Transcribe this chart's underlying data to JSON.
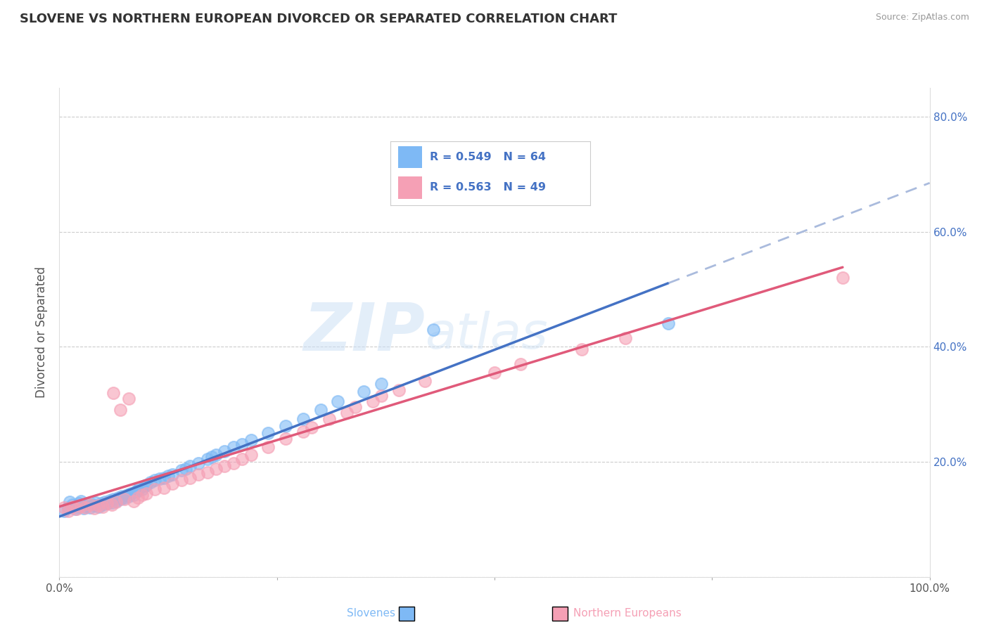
{
  "title": "SLOVENE VS NORTHERN EUROPEAN DIVORCED OR SEPARATED CORRELATION CHART",
  "source": "Source: ZipAtlas.com",
  "ylabel": "Divorced or Separated",
  "legend_labels": [
    "Slovenes",
    "Northern Europeans"
  ],
  "slovene_color": "#7eb9f5",
  "northern_color": "#f5a0b5",
  "slovene_line_color": "#4472c4",
  "northern_line_color": "#e05a7a",
  "slovene_R": 0.549,
  "slovene_N": 64,
  "northern_R": 0.563,
  "northern_N": 49,
  "xlim": [
    0.0,
    1.0
  ],
  "ylim": [
    0.0,
    0.85
  ],
  "watermark_zip": "ZIP",
  "watermark_atlas": "atlas",
  "slovene_x": [
    0.005,
    0.01,
    0.012,
    0.015,
    0.018,
    0.02,
    0.022,
    0.025,
    0.028,
    0.03,
    0.032,
    0.035,
    0.038,
    0.04,
    0.042,
    0.045,
    0.048,
    0.05,
    0.052,
    0.055,
    0.058,
    0.06,
    0.062,
    0.065,
    0.068,
    0.07,
    0.072,
    0.075,
    0.078,
    0.08,
    0.082,
    0.085,
    0.088,
    0.09,
    0.092,
    0.095,
    0.098,
    0.1,
    0.105,
    0.11,
    0.115,
    0.12,
    0.125,
    0.13,
    0.14,
    0.145,
    0.15,
    0.16,
    0.17,
    0.175,
    0.18,
    0.19,
    0.2,
    0.21,
    0.22,
    0.24,
    0.26,
    0.28,
    0.3,
    0.32,
    0.35,
    0.37,
    0.43,
    0.7
  ],
  "slovene_y": [
    0.115,
    0.12,
    0.13,
    0.125,
    0.118,
    0.122,
    0.128,
    0.132,
    0.119,
    0.123,
    0.127,
    0.121,
    0.126,
    0.124,
    0.129,
    0.122,
    0.128,
    0.125,
    0.13,
    0.128,
    0.133,
    0.129,
    0.135,
    0.132,
    0.138,
    0.135,
    0.14,
    0.138,
    0.143,
    0.14,
    0.145,
    0.142,
    0.148,
    0.15,
    0.155,
    0.152,
    0.158,
    0.16,
    0.165,
    0.168,
    0.17,
    0.172,
    0.175,
    0.178,
    0.185,
    0.188,
    0.192,
    0.198,
    0.205,
    0.208,
    0.212,
    0.218,
    0.225,
    0.23,
    0.238,
    0.25,
    0.262,
    0.275,
    0.29,
    0.305,
    0.322,
    0.335,
    0.43,
    0.44
  ],
  "northern_x": [
    0.005,
    0.01,
    0.015,
    0.02,
    0.025,
    0.03,
    0.035,
    0.04,
    0.045,
    0.05,
    0.055,
    0.06,
    0.062,
    0.065,
    0.07,
    0.075,
    0.08,
    0.085,
    0.09,
    0.095,
    0.1,
    0.11,
    0.12,
    0.13,
    0.14,
    0.15,
    0.16,
    0.17,
    0.18,
    0.19,
    0.2,
    0.21,
    0.22,
    0.24,
    0.26,
    0.28,
    0.29,
    0.31,
    0.33,
    0.34,
    0.36,
    0.37,
    0.39,
    0.42,
    0.5,
    0.53,
    0.6,
    0.65,
    0.9
  ],
  "northern_y": [
    0.12,
    0.115,
    0.122,
    0.118,
    0.123,
    0.121,
    0.125,
    0.119,
    0.124,
    0.122,
    0.128,
    0.125,
    0.32,
    0.13,
    0.29,
    0.135,
    0.31,
    0.132,
    0.138,
    0.142,
    0.145,
    0.152,
    0.155,
    0.162,
    0.168,
    0.172,
    0.178,
    0.182,
    0.188,
    0.192,
    0.198,
    0.205,
    0.212,
    0.225,
    0.24,
    0.252,
    0.26,
    0.275,
    0.285,
    0.295,
    0.305,
    0.315,
    0.325,
    0.34,
    0.355,
    0.37,
    0.395,
    0.415,
    0.52
  ]
}
